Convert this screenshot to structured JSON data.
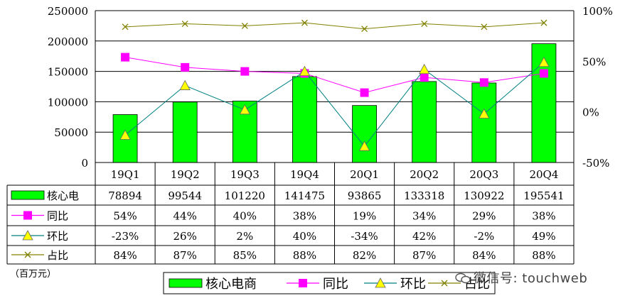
{
  "chart_data": {
    "type": "bar",
    "categories": [
      "19Q1",
      "19Q2",
      "19Q3",
      "19Q4",
      "20Q1",
      "20Q2",
      "20Q3",
      "20Q4"
    ],
    "series": [
      {
        "name": "核心电商",
        "type": "bar",
        "axis": "left",
        "color": "#00ff00",
        "values": [
          78894,
          99544,
          101220,
          141475,
          93865,
          133318,
          130922,
          195541
        ]
      },
      {
        "name": "同比",
        "type": "line",
        "axis": "right",
        "color": "#ff00ff",
        "marker": "square",
        "values": [
          54,
          44,
          40,
          38,
          19,
          34,
          29,
          38
        ]
      },
      {
        "name": "环比",
        "type": "line",
        "axis": "right",
        "color": "#008080",
        "marker": "triangle",
        "values": [
          -23,
          26,
          2,
          40,
          -34,
          42,
          -2,
          49
        ]
      },
      {
        "name": "占比",
        "type": "line",
        "axis": "right",
        "color": "#808000",
        "marker": "x",
        "values": [
          84,
          87,
          85,
          88,
          82,
          87,
          84,
          88
        ]
      }
    ],
    "table": {
      "row_labels": [
        "核心电",
        "同比",
        "环比",
        "占比"
      ],
      "rows": [
        [
          "78894",
          "99544",
          "101220",
          "141475",
          "93865",
          "133318",
          "130922",
          "195541"
        ],
        [
          "54%",
          "44%",
          "40%",
          "38%",
          "19%",
          "34%",
          "29%",
          "38%"
        ],
        [
          "-23%",
          "26%",
          "2%",
          "40%",
          "-34%",
          "42%",
          "-2%",
          "49%"
        ],
        [
          "84%",
          "87%",
          "85%",
          "88%",
          "82%",
          "87%",
          "84%",
          "88%"
        ]
      ]
    },
    "ylim_left": [
      0,
      250000
    ],
    "yticks_left": [
      "0",
      "50000",
      "100000",
      "150000",
      "200000",
      "250000"
    ],
    "ylim_right": [
      -50,
      100
    ],
    "yticks_right": [
      "-50%",
      "0%",
      "50%",
      "100%"
    ],
    "unit_note": "（百万元）",
    "legend_position": "bottom-center",
    "grid": "horizontal"
  },
  "watermark": "微信号: touchweb"
}
